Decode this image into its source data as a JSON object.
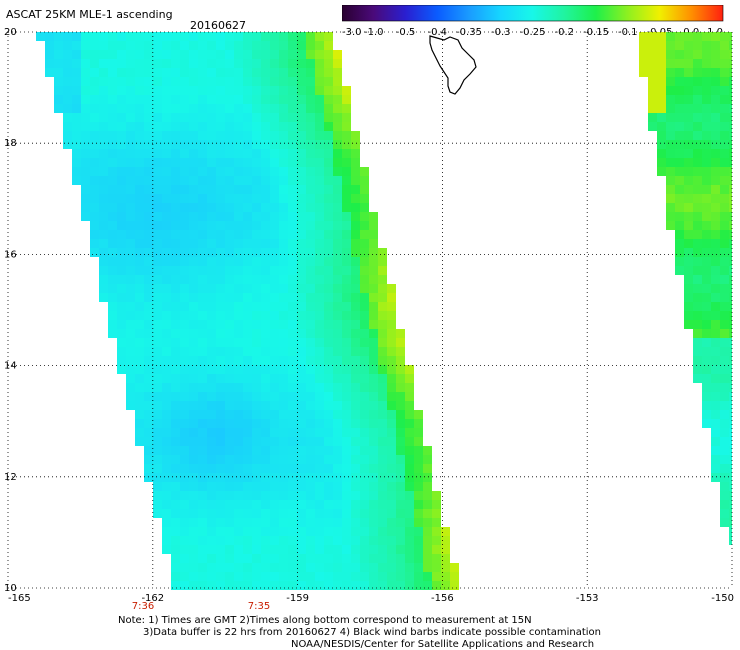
{
  "header": {
    "title": "ASCAT 25KM MLE-1 ascending",
    "date": "20160627"
  },
  "colorbar": {
    "ticks": [
      "-3.0",
      "-1.0",
      "-0.5",
      "-0.4",
      "-0.35",
      "-0.3",
      "-0.25",
      "-0.2",
      "-0.15",
      "-0.1",
      "-0.05",
      "0.0",
      "1.0"
    ],
    "colors": [
      "#2a0030",
      "#4a0a7a",
      "#2a1fd0",
      "#0a5cff",
      "#1a9bff",
      "#16d6ff",
      "#18f7e8",
      "#20f4a0",
      "#1ef04a",
      "#8ef020",
      "#f0f000",
      "#ff9000",
      "#ff2010"
    ]
  },
  "map": {
    "lon_ticks": [
      "-165",
      "-162",
      "-159",
      "-156",
      "-153",
      "-150"
    ],
    "lat_ticks": [
      "10",
      "12",
      "14",
      "16",
      "18",
      "20"
    ],
    "lon_range": [
      -165,
      -150
    ],
    "lat_range": [
      10,
      20
    ],
    "grid": true,
    "time_labels": [
      "7:36",
      "7:35"
    ],
    "time_color": "#c81e00",
    "island": "hawaii-big-island-outline"
  },
  "footer": {
    "line1": "Note: 1) Times are GMT 2)Times along bottom correspond to measurement at 15N",
    "line2": "3)Data buffer is 22 hrs from 20160627 4) Black wind barbs indicate possible contamination",
    "line3": "NOAA/NESDIS/Center for Satellite Applications and Research"
  }
}
